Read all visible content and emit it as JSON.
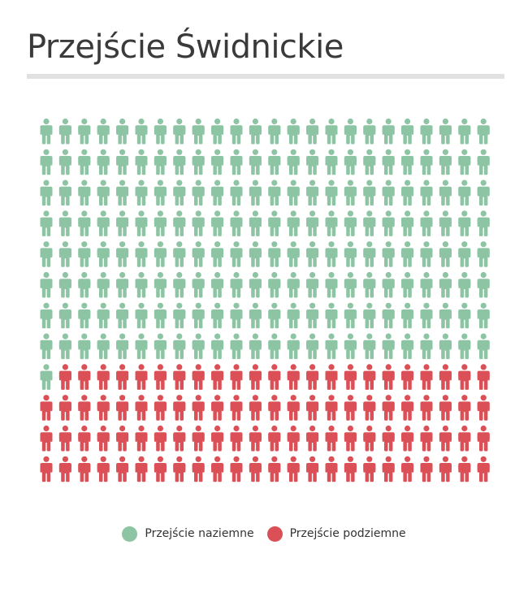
{
  "title": "Przejście Świdnickie",
  "chart_data": {
    "type": "pictogram",
    "icon": "person-icon",
    "columns": 24,
    "rows": 12,
    "total_icons": 288,
    "series": [
      {
        "name": "Przejście naziemne",
        "count": 193,
        "color": "#8dc5a4"
      },
      {
        "name": "Przejście podziemne",
        "count": 95,
        "color": "#db5056"
      }
    ]
  },
  "legend": [
    {
      "label": "Przejście naziemne",
      "color": "#8dc5a4"
    },
    {
      "label": "Przejście podziemne",
      "color": "#db5056"
    }
  ]
}
